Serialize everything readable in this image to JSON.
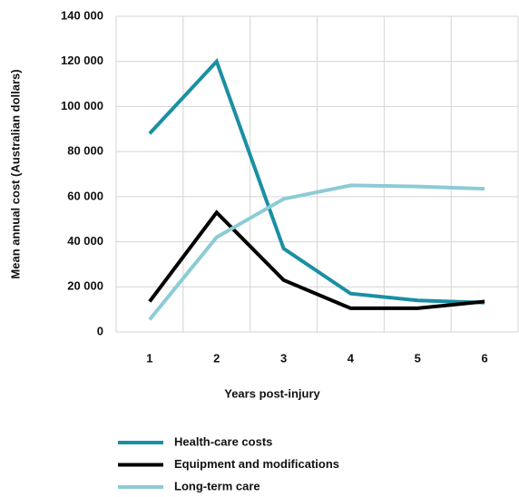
{
  "chart_data": {
    "type": "line",
    "xlabel": "Years post-injury",
    "ylabel": "Mean annual cost (Australian dollars)",
    "categories": [
      "1",
      "2",
      "3",
      "4",
      "5",
      "6"
    ],
    "series": [
      {
        "name": "Health-care costs",
        "color": "#1a8fa3",
        "values": [
          88000,
          120000,
          37000,
          17000,
          14000,
          13000
        ]
      },
      {
        "name": "Equipment and modifications",
        "color": "#000000",
        "values": [
          13500,
          53000,
          23000,
          10500,
          10500,
          13500
        ]
      },
      {
        "name": "Long-term care",
        "color": "#8ccbd6",
        "values": [
          5500,
          42000,
          59000,
          65000,
          64500,
          63500
        ]
      }
    ],
    "ylim": [
      0,
      140000
    ],
    "yticks": [
      0,
      {
        "value": 20000,
        "label": "20 000"
      },
      {
        "value": 40000,
        "label": "40 000"
      },
      {
        "value": 60000,
        "label": "60 000"
      },
      {
        "value": 80000,
        "label": "80 000"
      },
      {
        "value": 100000,
        "label": "100 000"
      },
      {
        "value": 120000,
        "label": "120 000"
      },
      {
        "value": 140000,
        "label": "140 000"
      }
    ],
    "grid": true,
    "legend": "bottom"
  }
}
